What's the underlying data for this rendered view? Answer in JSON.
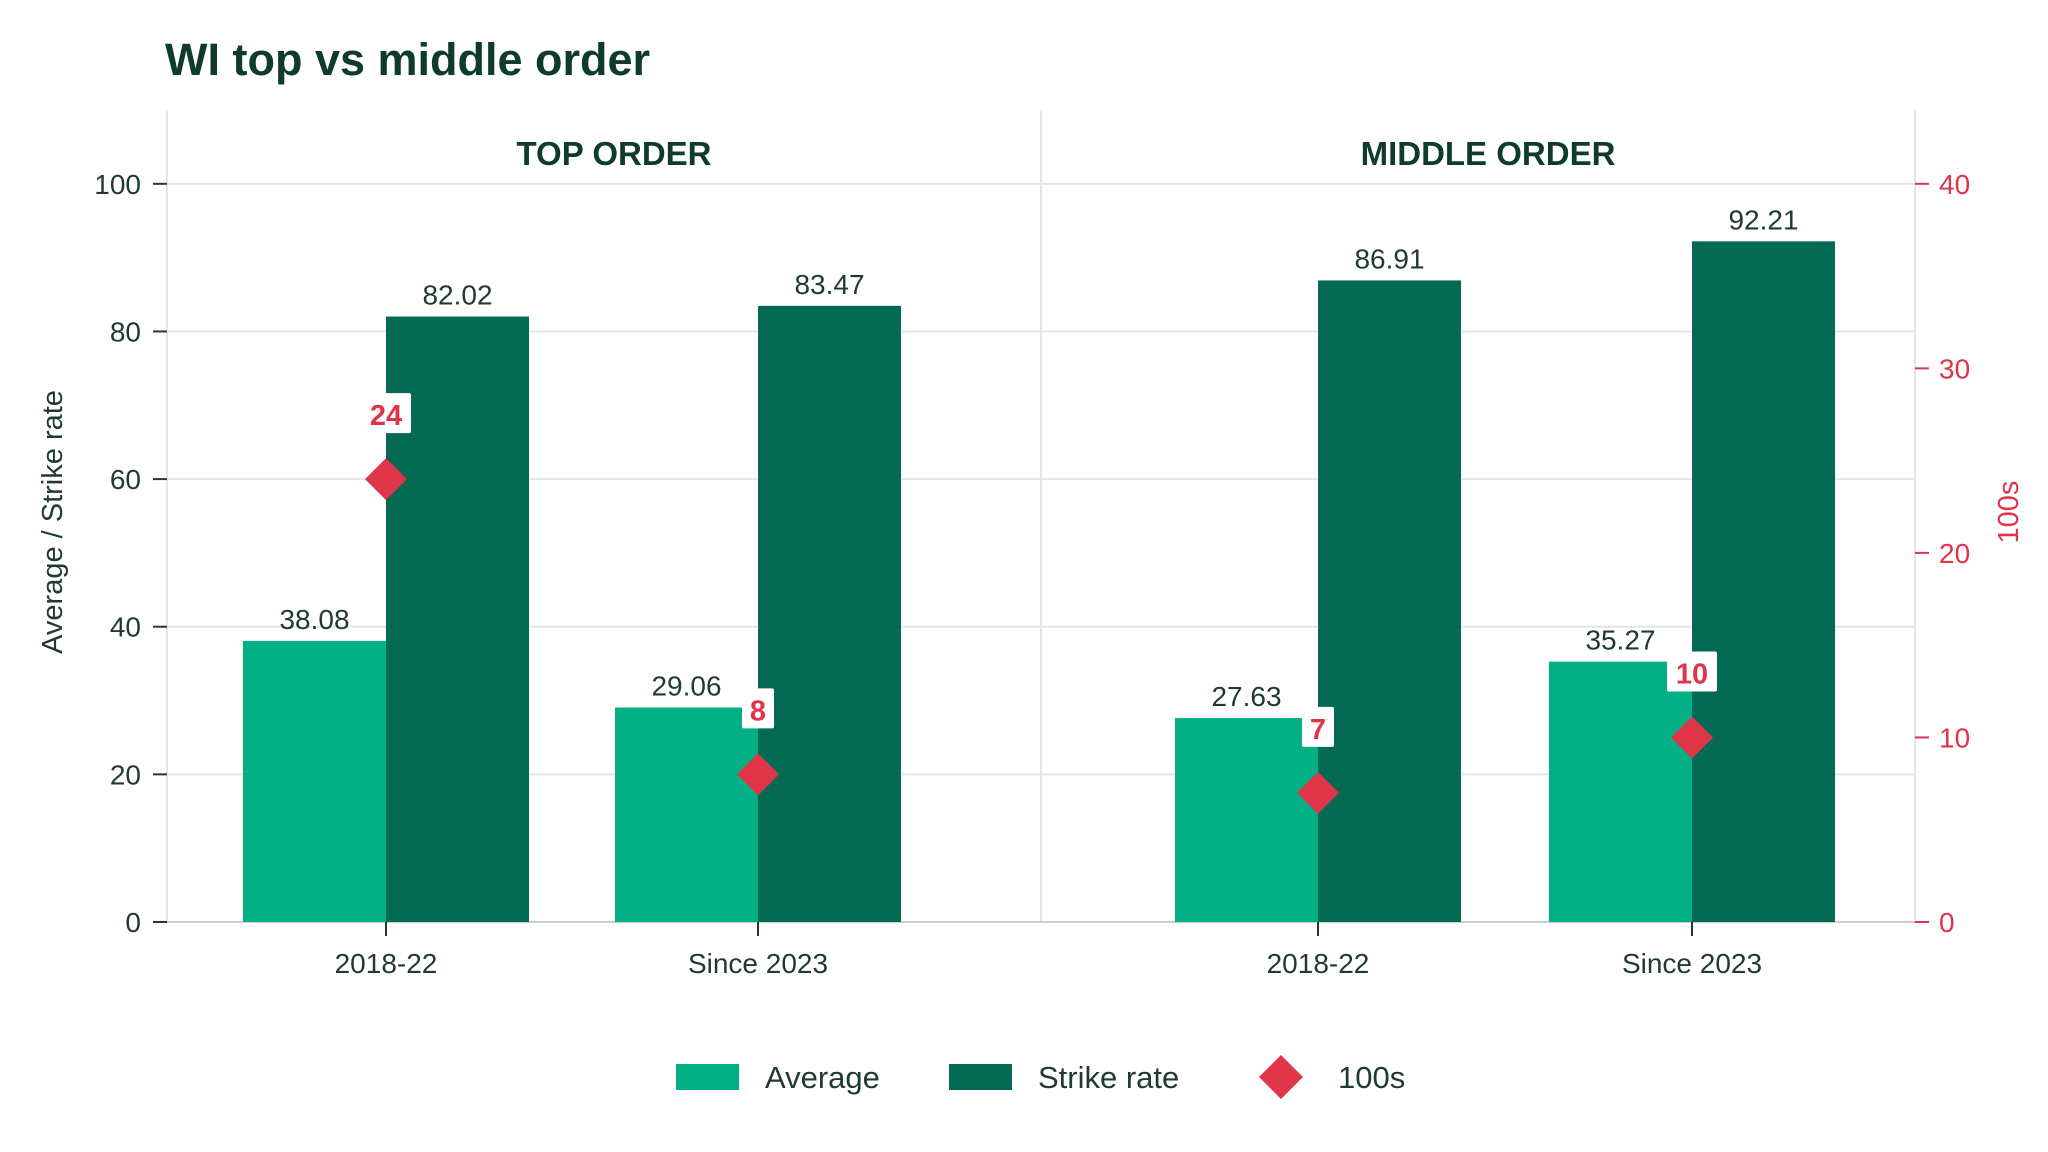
{
  "chart_data": {
    "type": "bar",
    "title": "WI top vs middle order",
    "ylabel": "Average / Strike rate",
    "ylabel_right": "100s",
    "ylim": [
      0,
      110
    ],
    "ylim_right": [
      0,
      44
    ],
    "yticks": [
      0,
      20,
      40,
      60,
      80,
      100
    ],
    "yticks_right": [
      0,
      10,
      20,
      30,
      40
    ],
    "grid": true,
    "legend_position": "bottom-center",
    "colors": {
      "average": "#03b086",
      "strike_rate": "#046a53",
      "hundreds": "#e03448",
      "text": "#1f3a33",
      "title": "#0f3b2e",
      "grid": "#e3e6e8"
    },
    "panels": [
      {
        "title": "TOP ORDER",
        "categories": [
          "2018-22",
          "Since 2023"
        ],
        "series": [
          {
            "name": "Average",
            "values": [
              38.08,
              29.06
            ]
          },
          {
            "name": "Strike rate",
            "values": [
              82.02,
              83.47
            ]
          },
          {
            "name": "100s",
            "values": [
              24,
              8
            ]
          }
        ]
      },
      {
        "title": "MIDDLE ORDER",
        "categories": [
          "2018-22",
          "Since 2023"
        ],
        "series": [
          {
            "name": "Average",
            "values": [
              27.63,
              35.27
            ]
          },
          {
            "name": "Strike rate",
            "values": [
              86.91,
              92.21
            ]
          },
          {
            "name": "100s",
            "values": [
              7,
              10
            ]
          }
        ]
      }
    ],
    "legend": [
      "Average",
      "Strike rate",
      "100s"
    ]
  }
}
